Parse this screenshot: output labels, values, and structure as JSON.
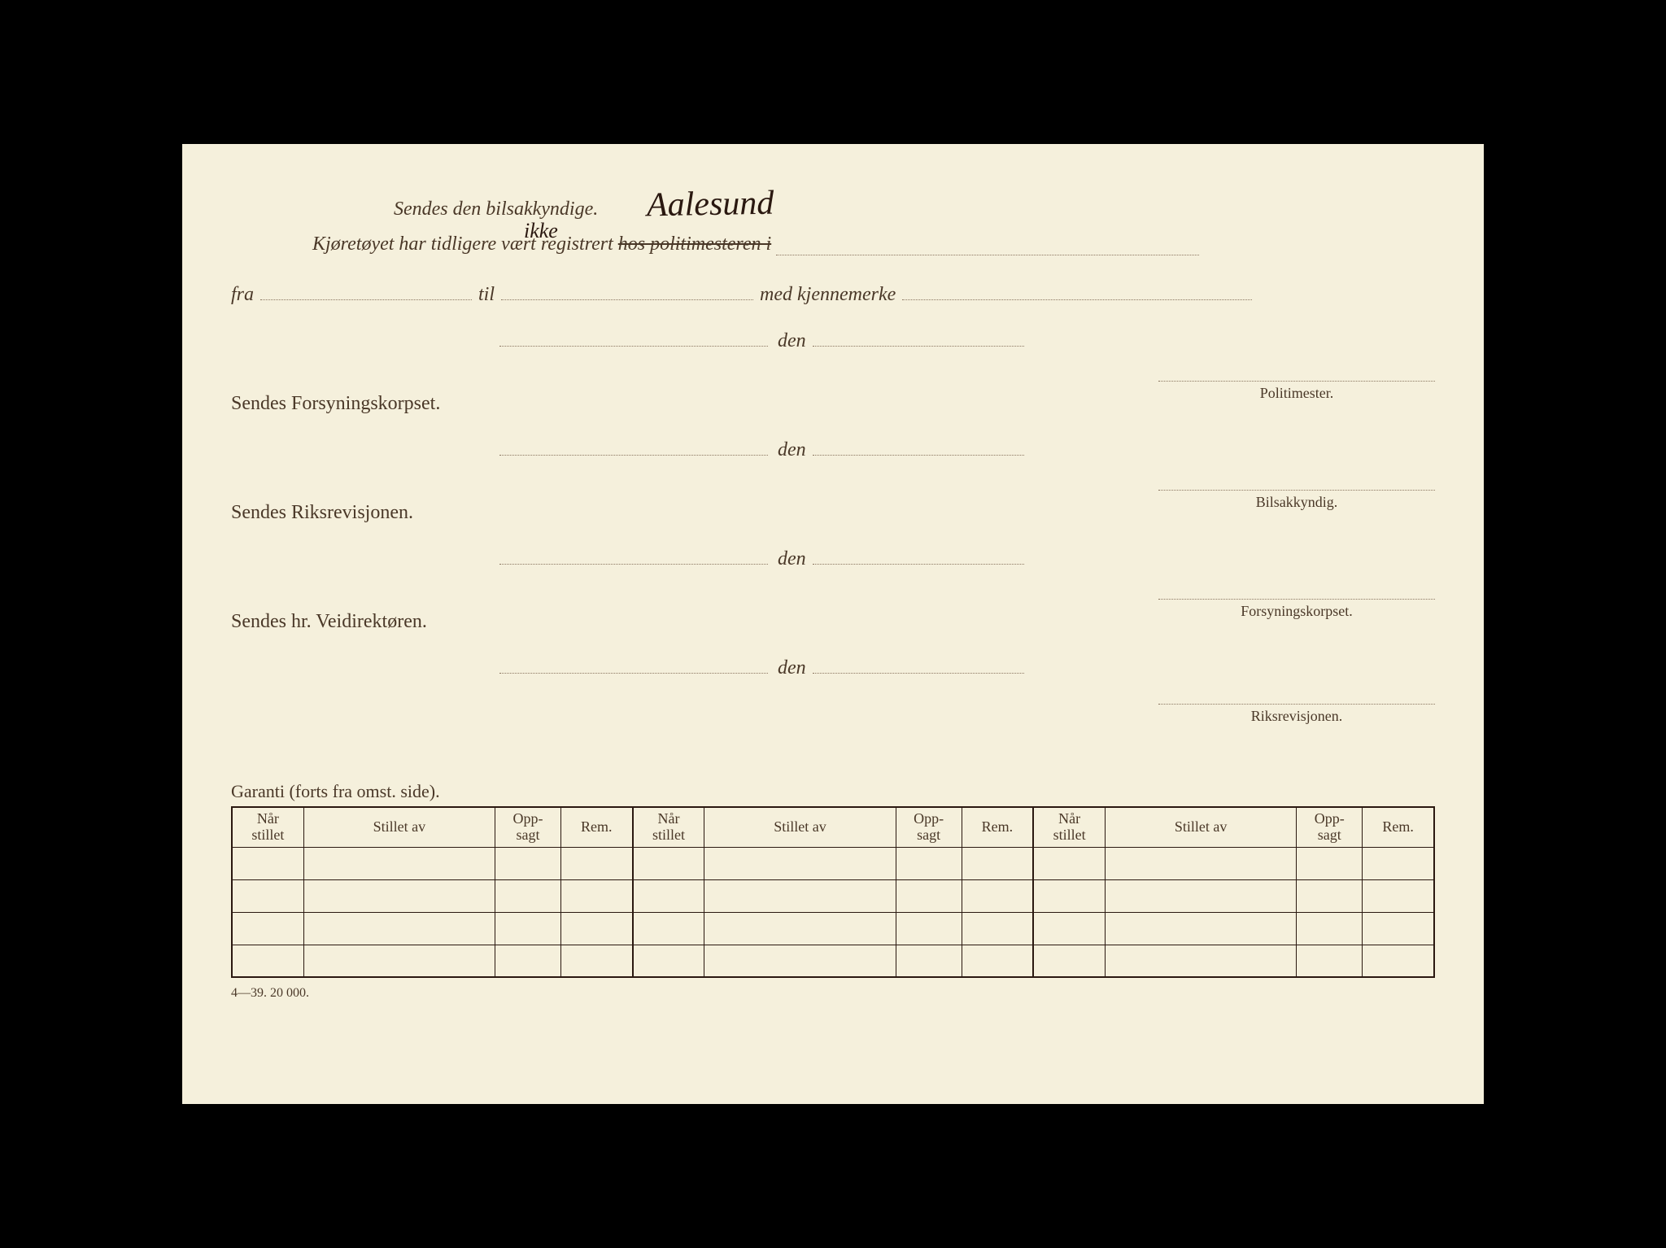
{
  "header": {
    "line1_text": "Sendes den bilsakkyndige.",
    "handwriting1": "Aalesund",
    "line2_prefix": "Kjøretøyet har tidligere vært registrert ",
    "line2_struck": "hos politimesteren i",
    "handwriting2": "ikke"
  },
  "fra_row": {
    "fra": "fra",
    "til": "til",
    "med": "med kjennemerke"
  },
  "den_label": "den",
  "sections": [
    {
      "label": "Sendes Forsyningskorpset.",
      "signature": "Politimester."
    },
    {
      "label": "Sendes Riksrevisjonen.",
      "signature": "Bilsakkyndig."
    },
    {
      "label": "Sendes hr. Veidirektøren.",
      "signature": "Forsyningskorpset."
    }
  ],
  "final_signature": "Riksrevisjonen.",
  "garanti_title": "Garanti (forts fra omst. side).",
  "table": {
    "headers": {
      "nar_stillet": "Når stillet",
      "stillet_av": "Stillet av",
      "oppsagt": "Opp-sagt",
      "rem": "Rem."
    },
    "group_count": 3,
    "row_count": 4
  },
  "footer": "4—39.  20 000.",
  "colors": {
    "page_bg": "#f5f0dc",
    "text": "#4a3828",
    "border": "#2a1810",
    "dotted": "#8a7560"
  }
}
